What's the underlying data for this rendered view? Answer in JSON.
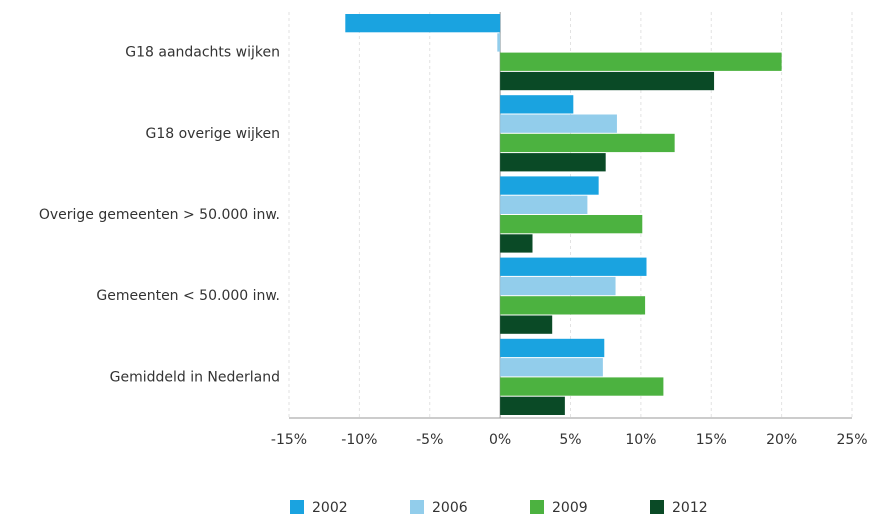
{
  "chart_data": {
    "type": "hbar",
    "categories": [
      "G18 aandachts wijken",
      "G18 overige wijken",
      "Overige gemeenten > 50.000 inw.",
      "Gemeenten < 50.000 inw.",
      "Gemiddeld in Nederland"
    ],
    "series": [
      {
        "name": "2002",
        "color": "#1aa3e0",
        "values": [
          -11,
          5.2,
          7.0,
          10.4,
          7.4
        ]
      },
      {
        "name": "2006",
        "color": "#92cdeb",
        "values": [
          -0.2,
          8.3,
          6.2,
          8.2,
          7.3
        ]
      },
      {
        "name": "2009",
        "color": "#4cb240",
        "values": [
          20.0,
          12.4,
          10.1,
          10.3,
          11.6
        ]
      },
      {
        "name": "2012",
        "color": "#0a4a26",
        "values": [
          15.2,
          7.5,
          2.3,
          3.7,
          4.6
        ]
      }
    ],
    "xlim": [
      -15,
      25
    ],
    "xticks": [
      {
        "value": -15,
        "label": "-15%"
      },
      {
        "value": -10,
        "label": "-10%"
      },
      {
        "value": -5,
        "label": "-5%"
      },
      {
        "value": 0,
        "label": "0%"
      },
      {
        "value": 5,
        "label": "5%"
      },
      {
        "value": 10,
        "label": "10%"
      },
      {
        "value": 15,
        "label": "15%"
      },
      {
        "value": 20,
        "label": "20%"
      },
      {
        "value": 25,
        "label": "25%"
      }
    ],
    "grid": true,
    "legend": "bottom"
  }
}
